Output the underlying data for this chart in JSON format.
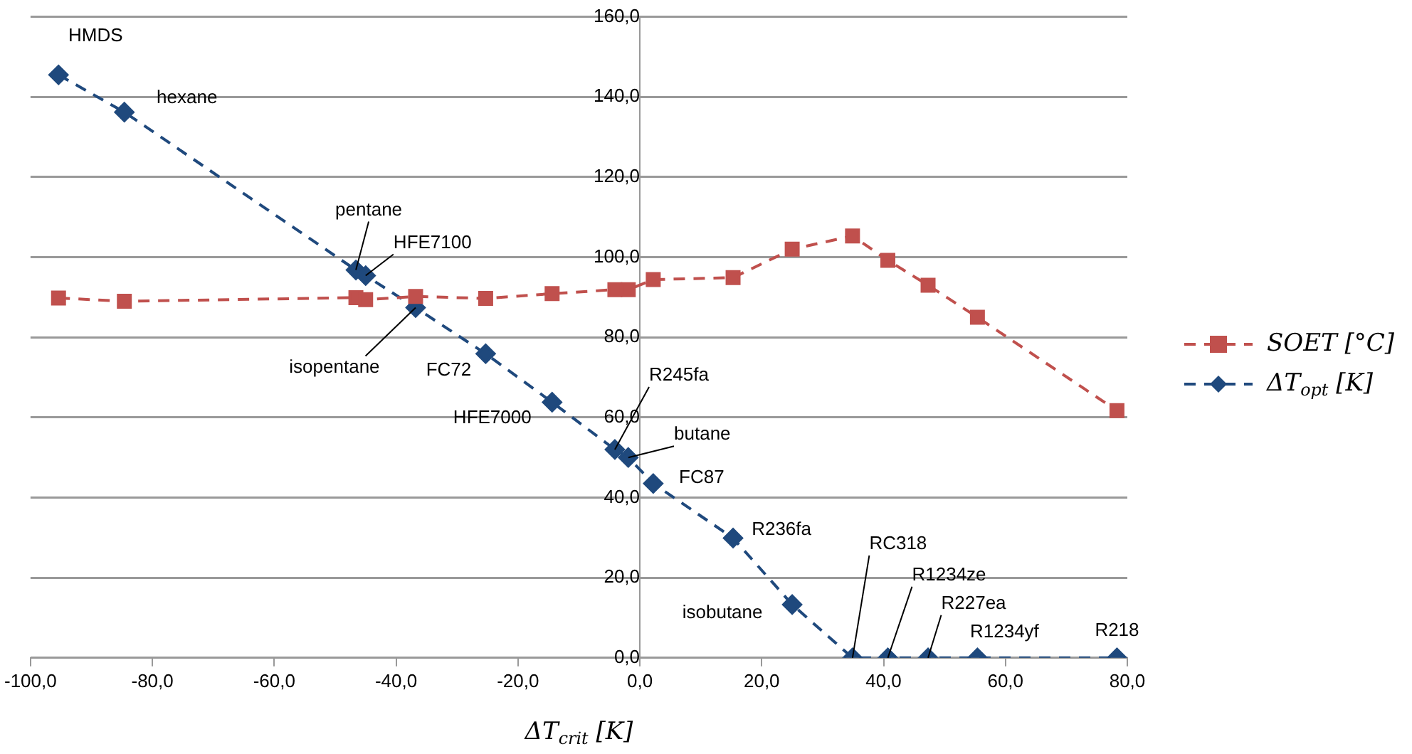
{
  "chart_data": {
    "type": "line",
    "xlabel": "ΔT$_{crit}$ [K]",
    "x": [
      -95.4,
      -84.6,
      -46.6,
      -45.0,
      -36.8,
      -25.3,
      -14.4,
      -4.1,
      -1.9,
      2.2,
      15.3,
      25.0,
      34.9,
      40.7,
      47.3,
      55.4,
      78.3
    ],
    "series": [
      {
        "name": "SOET [°C]",
        "color": "#c0504d",
        "marker": "square",
        "values": [
          89.8,
          89.0,
          89.9,
          89.4,
          90.2,
          89.7,
          90.9,
          91.9,
          91.9,
          94.4,
          94.9,
          102.0,
          105.3,
          99.2,
          93.0,
          85.0,
          61.7
        ]
      },
      {
        "name": "ΔT$_{opt}$ [K]",
        "color": "#1f497d",
        "marker": "diamond",
        "values": [
          145.5,
          136.2,
          96.8,
          95.4,
          87.4,
          75.9,
          63.8,
          52.0,
          50.0,
          43.5,
          29.9,
          13.3,
          0,
          0,
          0,
          0,
          0
        ]
      }
    ],
    "xlim": [
      -100,
      80
    ],
    "xticks": [
      {
        "value": -100,
        "label": "-100,0"
      },
      {
        "value": -80,
        "label": "-80,0"
      },
      {
        "value": -60,
        "label": "-60,0"
      },
      {
        "value": -40,
        "label": "-40,0"
      },
      {
        "value": -20,
        "label": "-20,0"
      },
      {
        "value": 0,
        "label": "0,0"
      },
      {
        "value": 20,
        "label": "20,0"
      },
      {
        "value": 40,
        "label": "40,0"
      },
      {
        "value": 60,
        "label": "60,0"
      },
      {
        "value": 80,
        "label": "80,0"
      }
    ],
    "ylim": [
      0,
      160
    ],
    "yticks": [
      {
        "value": 0,
        "label": "0,0"
      },
      {
        "value": 20,
        "label": "20,0"
      },
      {
        "value": 40,
        "label": "40,0"
      },
      {
        "value": 60,
        "label": "60,0"
      },
      {
        "value": 80,
        "label": "80,0"
      },
      {
        "value": 100,
        "label": "100,0"
      },
      {
        "value": 120,
        "label": "120,0"
      },
      {
        "value": 140,
        "label": "140,0"
      },
      {
        "value": 160,
        "label": "160,0"
      }
    ],
    "grid": "y",
    "legend": "right",
    "line_style": "dashed",
    "annotations": [
      {
        "text": "HMDS",
        "x": -95.4,
        "y": 145.5
      },
      {
        "text": "hexane",
        "x": -84.6,
        "y": 136.2
      },
      {
        "text": "pentane",
        "x": -46.6,
        "y": 96.8
      },
      {
        "text": "HFE7100",
        "x": -45.0,
        "y": 95.4
      },
      {
        "text": "isopentane",
        "x": -36.8,
        "y": 87.4
      },
      {
        "text": "FC72",
        "x": -25.3,
        "y": 75.9
      },
      {
        "text": "HFE7000",
        "x": -14.4,
        "y": 63.8
      },
      {
        "text": "R245fa",
        "x": -4.1,
        "y": 52.0
      },
      {
        "text": "butane",
        "x": -1.9,
        "y": 50.0
      },
      {
        "text": "FC87",
        "x": 2.2,
        "y": 43.5
      },
      {
        "text": "R236fa",
        "x": 15.3,
        "y": 29.9
      },
      {
        "text": "isobutane",
        "x": 25.0,
        "y": 13.3
      },
      {
        "text": "RC318",
        "x": 34.9,
        "y": 0
      },
      {
        "text": "R1234ze",
        "x": 40.7,
        "y": 0
      },
      {
        "text": "R227ea",
        "x": 47.3,
        "y": 0
      },
      {
        "text": "R1234yf",
        "x": 55.4,
        "y": 0
      },
      {
        "text": "R218",
        "x": 78.3,
        "y": 0
      }
    ]
  }
}
